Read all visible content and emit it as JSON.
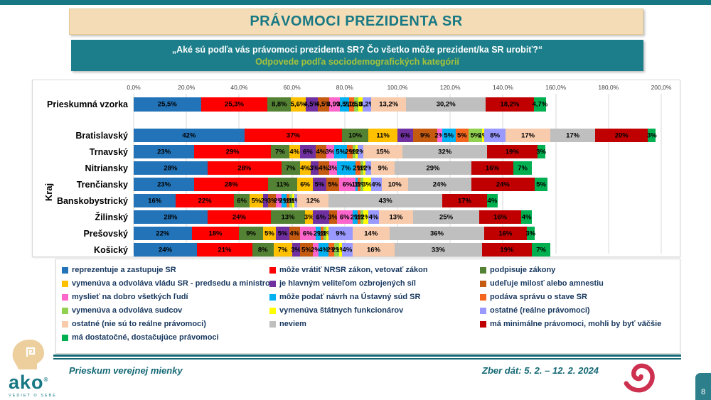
{
  "header": {
    "title": "PRÁVOMOCI PREZIDENTA SR",
    "question": "„Aké sú podľa vás právomoci prezidenta SR? Čo všetko môže prezident/ka SR urobiť?“",
    "subtitle": "Odpovede podľa sociodemografických kategórií"
  },
  "chart_data": {
    "type": "bar",
    "orientation": "horizontal-stacked",
    "y_axis_title": "Kraj",
    "x_axis": {
      "min": 0,
      "max": 200,
      "ticks": [
        "0,0%",
        "20,0%",
        "40,0%",
        "60,0%",
        "80,0%",
        "100,0%",
        "120,0%",
        "140,0%",
        "160,0%",
        "180,0%",
        "200,0%"
      ]
    },
    "series": [
      {
        "name": "reprezentuje a zastupuje SR",
        "color": "#2273B8"
      },
      {
        "name": "môže vrátiť NRSR zákon, vetovať zákon",
        "color": "#FE0000"
      },
      {
        "name": "podpisuje zákony",
        "color": "#548235"
      },
      {
        "name": "vymenúva a odvoláva vládu SR - predsedu a ministrov",
        "color": "#FFC000"
      },
      {
        "name": "je hlavným veliteľom ozbrojených síl",
        "color": "#7030A0"
      },
      {
        "name": "udeľuje milosť alebo amnestiu",
        "color": "#C55A11"
      },
      {
        "name": "myslieť na dobro všetkých ľudí",
        "color": "#FF66CC"
      },
      {
        "name": "môže podať návrh na Ústavný súd SR",
        "color": "#00B0F0"
      },
      {
        "name": "podáva správu o stave SR",
        "color": "#F4651E"
      },
      {
        "name": "vymenúva a odvoláva sudcov",
        "color": "#92D050"
      },
      {
        "name": "vymenúva štátnych funkcionárov",
        "color": "#FFFF00"
      },
      {
        "name": "ostatné (reálne právomoci)",
        "color": "#9999FF"
      },
      {
        "name": "ostatné (nie sú to reálne právomoci)",
        "color": "#F8CBAD"
      },
      {
        "name": "neviem",
        "color": "#BFBFBF"
      },
      {
        "name": "má minimálne právomoci, mohli by byť väčšie",
        "color": "#C00000"
      },
      {
        "name": "má dostatočné, dostačujúce právomoci",
        "color": "#00B050"
      }
    ],
    "rows": [
      {
        "label": "Prieskumná vzorka",
        "group": "sample",
        "values": [
          25.5,
          25.3,
          8.8,
          5.6,
          4.5,
          4.5,
          3.9,
          3.5,
          2.0,
          1.5,
          1.8,
          3.2,
          13.2,
          30.2,
          18.2,
          4.7
        ],
        "display": [
          "25,5%",
          "25,3%",
          "8,8%",
          "5,6%",
          "4,5%",
          "4,5%",
          "3,9%",
          "3,5%",
          "2,0%",
          "1,5%",
          "1,8%",
          "3,2%",
          "13,2%",
          "30,2%",
          "18,2%",
          "4,7%"
        ]
      },
      {
        "label": "Bratislavský",
        "group": "kraj",
        "values": [
          42,
          37,
          10,
          11,
          6,
          9,
          2,
          5,
          5,
          5,
          1,
          8,
          17,
          17,
          20,
          3
        ],
        "display": [
          "42%",
          "37%",
          "10%",
          "11%",
          "6%",
          "9%",
          "2%",
          "5%",
          "5%",
          "5%",
          "1%",
          "8%",
          "17%",
          "17%",
          "20%",
          "3%"
        ]
      },
      {
        "label": "Trnavský",
        "group": "kraj",
        "values": [
          23,
          29,
          7,
          4,
          6,
          4,
          3,
          5,
          2,
          1,
          1,
          2,
          15,
          32,
          19,
          3
        ],
        "display": [
          "23%",
          "29%",
          "7%",
          "4%",
          "6%",
          "4%",
          "3%",
          "5%",
          "2%",
          "1%",
          "1%",
          "2%",
          "15%",
          "32%",
          "19%",
          "3%"
        ]
      },
      {
        "label": "Nitriansky",
        "group": "kraj",
        "values": [
          28,
          28,
          7,
          4,
          3,
          4,
          3,
          7,
          2,
          1,
          1,
          2,
          9,
          29,
          16,
          7
        ],
        "display": [
          "28%",
          "28%",
          "7%",
          "4%",
          "3%",
          "4%",
          "3%",
          "7%",
          "2%",
          "1%",
          "1%",
          "2%",
          "9%",
          "29%",
          "16%",
          "7%"
        ]
      },
      {
        "label": "Trenčiansky",
        "group": "kraj",
        "values": [
          23,
          28,
          11,
          6,
          5,
          5,
          6,
          1,
          1,
          1,
          3,
          4,
          10,
          24,
          24,
          5
        ],
        "display": [
          "23%",
          "28%",
          "11%",
          "6%",
          "5%",
          "5%",
          "6%",
          "1%",
          "1%",
          "1%",
          "3%",
          "4%",
          "10%",
          "24%",
          "24%",
          "5%"
        ]
      },
      {
        "label": "Banskobystrický",
        "group": "kraj",
        "values": [
          16,
          22,
          6,
          5,
          2,
          3,
          2,
          2,
          1,
          1,
          1,
          1,
          12,
          43,
          17,
          4
        ],
        "display": [
          "16%",
          "22%",
          "6%",
          "5%",
          "2%",
          "3%",
          "2%",
          "2%",
          "1%",
          "1%",
          "1%",
          "1%",
          "12%",
          "43%",
          "17%",
          "4%"
        ]
      },
      {
        "label": "Žilinský",
        "group": "kraj",
        "values": [
          28,
          24,
          13,
          3,
          6,
          3,
          6,
          2,
          1,
          1,
          2,
          4,
          13,
          25,
          16,
          4
        ],
        "display": [
          "28%",
          "24%",
          "13%",
          "3%",
          "6%",
          "3%",
          "6%",
          "2%",
          "1%",
          "1%",
          "2%",
          "4%",
          "13%",
          "25%",
          "16%",
          "4%"
        ]
      },
      {
        "label": "Prešovský",
        "group": "kraj",
        "values": [
          22,
          18,
          9,
          5,
          5,
          4,
          6,
          2,
          1,
          1,
          1,
          9,
          14,
          36,
          16,
          3
        ],
        "display": [
          "22%",
          "18%",
          "9%",
          "5%",
          "5%",
          "4%",
          "6%",
          "2%",
          "1%",
          "1%",
          "1%",
          "9%",
          "14%",
          "36%",
          "16%",
          "3%"
        ]
      },
      {
        "label": "Košický",
        "group": "kraj",
        "values": [
          24,
          21,
          8,
          7,
          3,
          5,
          2,
          4,
          2,
          2,
          1,
          4,
          16,
          33,
          19,
          7
        ],
        "display": [
          "24%",
          "21%",
          "8%",
          "7%",
          "3%",
          "5%",
          "2%",
          "4%",
          "2%",
          "2%",
          "1%",
          "4%",
          "16%",
          "33%",
          "19%",
          "7%"
        ]
      }
    ]
  },
  "footer": {
    "logo_text": "ako",
    "logo_caption": "VEDIEŤ O SEBE",
    "left_text": "Prieskum verejnej mienky",
    "right_text": "Zber dát: 5. 2. – 12. 2. 2024",
    "page_number": "8",
    "accent_teal": "#177884",
    "accent_crimson": "#CE3050"
  }
}
